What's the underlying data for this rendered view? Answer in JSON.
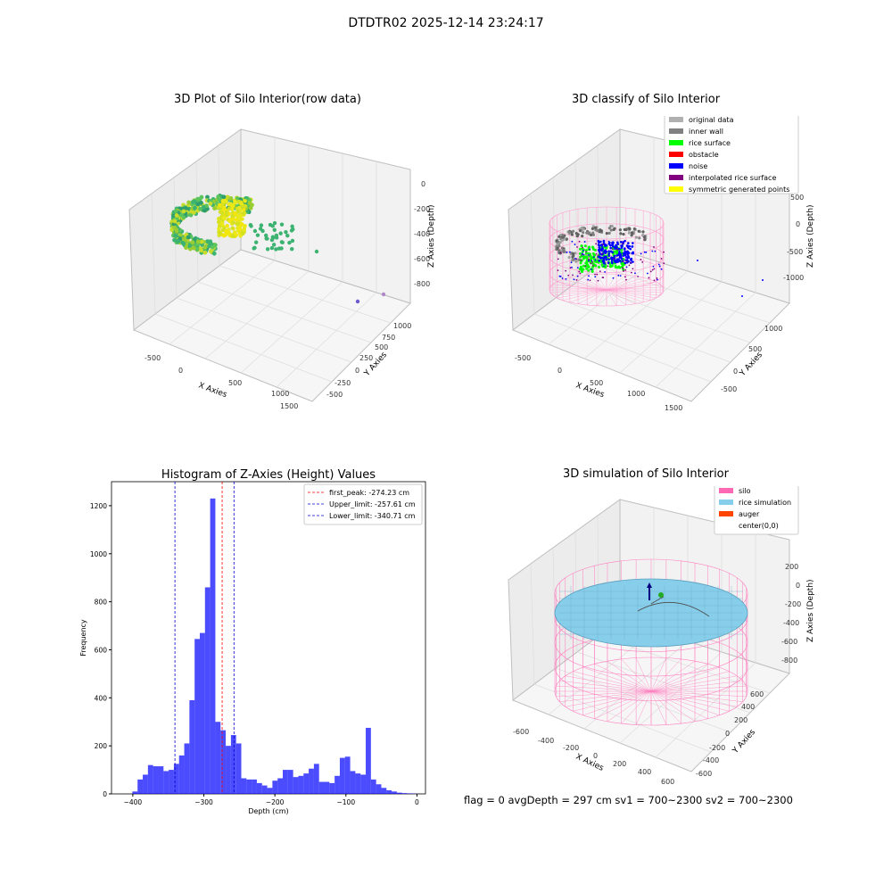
{
  "suptitle": "DTDTR02 2025-12-14 23:24:17",
  "panels": {
    "raw": {
      "title": "3D Plot of Silo Interior(row data)",
      "xlabel": "X Axies",
      "ylabel": "Y Axies",
      "zlabel": "Z Axies (Depth)",
      "xticks": [
        "-500",
        "0",
        "500",
        "1000",
        "1500"
      ],
      "yticks": [
        "-500",
        "-250",
        "0",
        "250",
        "500",
        "750",
        "1000"
      ],
      "zticks": [
        "0",
        "-200",
        "-400",
        "-600",
        "-800"
      ]
    },
    "classify": {
      "title": "3D classify of Silo Interior",
      "xlabel": "X Axies",
      "ylabel": "Y Axies",
      "zlabel": "Z Axies (Depth)",
      "xticks": [
        "-500",
        "0",
        "500",
        "1000",
        "1500"
      ],
      "yticks": [
        "-500",
        "0",
        "500",
        "1000"
      ],
      "zticks": [
        "500",
        "0",
        "-500",
        "-1000"
      ],
      "legend": [
        {
          "label": "original data",
          "color": "#b0b0b0"
        },
        {
          "label": "inner wall",
          "color": "#808080"
        },
        {
          "label": "rice surface",
          "color": "#00ff00"
        },
        {
          "label": "obstacle",
          "color": "#ff0000"
        },
        {
          "label": "noise",
          "color": "#0000ff"
        },
        {
          "label": "interpolated rice surface",
          "color": "#800080"
        },
        {
          "label": "symmetric generated points",
          "color": "#ffff00"
        }
      ]
    },
    "sim": {
      "title": "3D simulation of Silo Interior",
      "xlabel": "X Axies",
      "ylabel": "Y Axies",
      "zlabel": "Z Axies (Depth)",
      "xticks": [
        "-600",
        "-400",
        "-200",
        "0",
        "200",
        "400",
        "600"
      ],
      "yticks": [
        "-600",
        "-400",
        "-200",
        "0",
        "200",
        "400",
        "600"
      ],
      "zticks": [
        "200",
        "0",
        "-200",
        "-400",
        "-600",
        "-800"
      ],
      "legend": [
        {
          "label": "silo",
          "color": "#ff69b4"
        },
        {
          "label": "rice simulation",
          "color": "#87ceeb"
        },
        {
          "label": "auger",
          "color": "#ff4500"
        },
        {
          "label": "center(0,0)",
          "color": "#ffffff"
        }
      ]
    }
  },
  "status_text": "flag = 0     avgDepth = 297 cm  sv1 = 700~2300  sv2 = 700~2300",
  "chart_data": {
    "type": "bar",
    "title": "Histogram of Z-Axies (Height) Values",
    "xlabel": "Depth (cm)",
    "ylabel": "Frequency",
    "xlim": [
      -430,
      12
    ],
    "ylim": [
      0,
      1300
    ],
    "xticks": [
      -400,
      -300,
      -200,
      -100,
      0
    ],
    "yticks": [
      0,
      200,
      400,
      600,
      800,
      1000,
      1200
    ],
    "bar_color": "#0000ff",
    "bin_width": 7.3,
    "bins_start": [
      -400.6,
      -393.3,
      -386,
      -378.7,
      -371.4,
      -364.1,
      -356.8,
      -349.5,
      -342.2,
      -334.9,
      -327.6,
      -320.3,
      -313,
      -305.7,
      -298.4,
      -291.1,
      -283.8,
      -276.5,
      -269.2,
      -261.9,
      -254.6,
      -247.3,
      -240,
      -232.7,
      -225.4,
      -218.1,
      -210.8,
      -203.5,
      -196.2,
      -188.9,
      -181.6,
      -174.3,
      -167,
      -159.7,
      -152.4,
      -145.1,
      -137.8,
      -130.5,
      -123.2,
      -115.9,
      -108.6,
      -101.3,
      -94,
      -86.7,
      -79.4,
      -72.1,
      -64.8,
      -57.5,
      -50.2,
      -42.9,
      -35.6,
      -28.3,
      -21,
      -13.7,
      -6.4
    ],
    "values": [
      10,
      60,
      80,
      120,
      115,
      115,
      95,
      100,
      125,
      160,
      210,
      390,
      645,
      670,
      860,
      1230,
      300,
      265,
      200,
      245,
      210,
      65,
      60,
      60,
      45,
      35,
      25,
      55,
      65,
      100,
      100,
      70,
      75,
      85,
      105,
      125,
      50,
      50,
      45,
      75,
      150,
      155,
      95,
      85,
      80,
      275,
      60,
      40,
      25,
      15,
      10,
      5,
      3,
      2,
      1
    ],
    "lines": [
      {
        "label": "first_peak: -274.23 cm",
        "x": -274.23,
        "color": "#ff0000"
      },
      {
        "label": "Upper_limit: -257.61 cm",
        "x": -257.61,
        "color": "#0000cc"
      },
      {
        "label": "Lower_limit: -340.71 cm",
        "x": -340.71,
        "color": "#0000cc"
      }
    ]
  }
}
